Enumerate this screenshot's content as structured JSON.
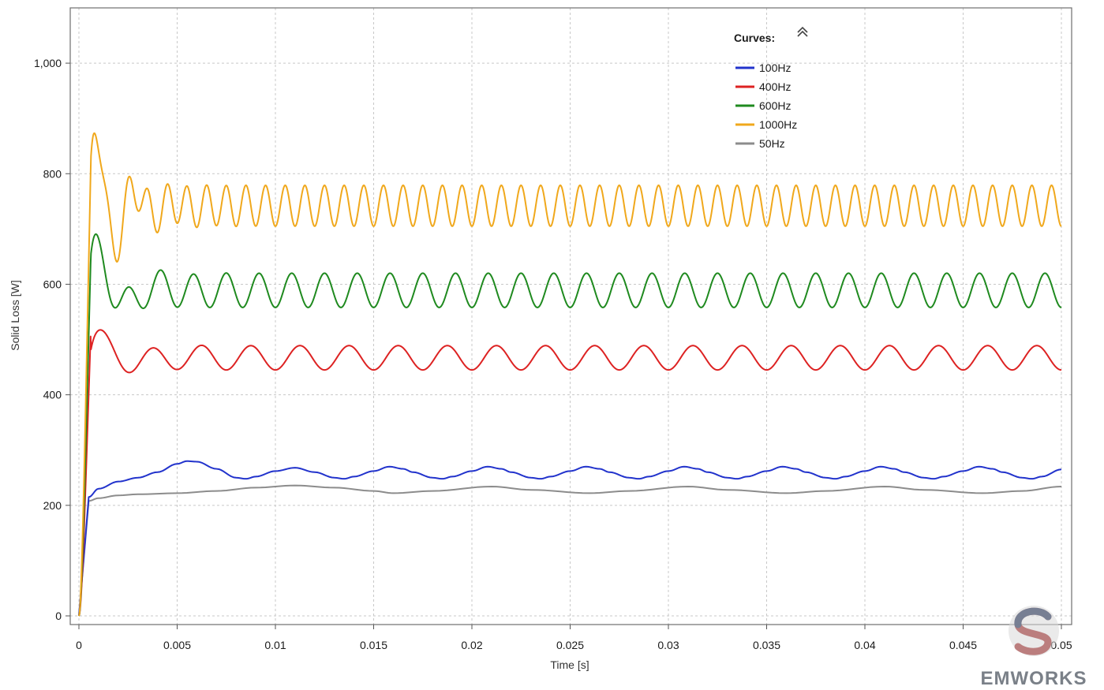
{
  "chart_data": {
    "type": "line",
    "xlabel": "Time [s]",
    "ylabel": "Solid Loss [W]",
    "xlim": [
      0,
      0.05
    ],
    "ylim": [
      0,
      1100
    ],
    "xticks": [
      0,
      0.005,
      0.01,
      0.015,
      0.02,
      0.025,
      0.03,
      0.035,
      0.04,
      0.045,
      0.05
    ],
    "xtick_labels": [
      "0",
      "0.005",
      "0.01",
      "0.015",
      "0.02",
      "0.025",
      "0.03",
      "0.035",
      "0.04",
      "0.045",
      "0.05"
    ],
    "yticks": [
      0,
      200,
      400,
      600,
      800,
      1000
    ],
    "ytick_labels": [
      "0",
      "200",
      "400",
      "600",
      "800",
      "1,000"
    ],
    "grid": true,
    "legend": {
      "title": "Curves:",
      "placement": "top-right",
      "collapse_icon": "double-chevron-up-icon"
    },
    "series": [
      {
        "name": "100Hz",
        "color": "#2233cc",
        "x": [
          0,
          0.0005,
          0.001,
          0.002,
          0.003,
          0.004,
          0.005,
          0.0055,
          0.006,
          0.007,
          0.008,
          0.0085,
          0.009,
          0.01,
          0.011,
          0.012,
          0.013,
          0.0135,
          0.014,
          0.015,
          0.0158,
          0.0165,
          0.017,
          0.018,
          0.0185,
          0.019,
          0.02,
          0.0208,
          0.0215,
          0.022,
          0.023,
          0.0235,
          0.024,
          0.025,
          0.0258,
          0.0265,
          0.027,
          0.028,
          0.0285,
          0.029,
          0.03,
          0.0308,
          0.0315,
          0.032,
          0.033,
          0.0335,
          0.034,
          0.035,
          0.0358,
          0.0365,
          0.037,
          0.038,
          0.0385,
          0.039,
          0.04,
          0.0408,
          0.0415,
          0.042,
          0.043,
          0.0435,
          0.044,
          0.045,
          0.0458,
          0.0465,
          0.047,
          0.048,
          0.0485,
          0.049,
          0.05
        ],
        "y": [
          0,
          215,
          230,
          243,
          250,
          260,
          275,
          280,
          279,
          266,
          250,
          248,
          252,
          262,
          268,
          260,
          250,
          248,
          252,
          262,
          270,
          266,
          260,
          250,
          248,
          252,
          262,
          270,
          266,
          260,
          250,
          248,
          252,
          262,
          270,
          266,
          260,
          250,
          248,
          252,
          262,
          270,
          266,
          260,
          250,
          248,
          252,
          262,
          270,
          266,
          260,
          250,
          248,
          252,
          262,
          270,
          266,
          260,
          250,
          248,
          252,
          262,
          270,
          266,
          260,
          250,
          248,
          252,
          265
        ]
      },
      {
        "name": "400Hz",
        "color": "#dd2222",
        "frequency_hz": 400,
        "mean": 467,
        "amplitude": 22
      },
      {
        "name": "600Hz",
        "color": "#1f8a1f",
        "frequency_hz": 600,
        "mean": 589,
        "amplitude": 31
      },
      {
        "name": "1000Hz",
        "color": "#f0a81c",
        "frequency_hz": 1000,
        "mean": 742,
        "amplitude": 37
      },
      {
        "name": "50Hz",
        "color": "#8c8c8c",
        "x": [
          0,
          0.0005,
          0.001,
          0.002,
          0.003,
          0.005,
          0.007,
          0.009,
          0.011,
          0.013,
          0.015,
          0.016,
          0.018,
          0.021,
          0.023,
          0.026,
          0.028,
          0.031,
          0.033,
          0.036,
          0.038,
          0.041,
          0.043,
          0.046,
          0.048,
          0.05
        ],
        "y": [
          0,
          208,
          213,
          218,
          220,
          222,
          226,
          232,
          236,
          232,
          226,
          222,
          226,
          234,
          228,
          222,
          226,
          234,
          228,
          222,
          226,
          234,
          228,
          222,
          226,
          234
        ]
      }
    ]
  },
  "watermark": {
    "text": "EMWORKS",
    "logo_icon": "emworks-s-logo-icon"
  }
}
